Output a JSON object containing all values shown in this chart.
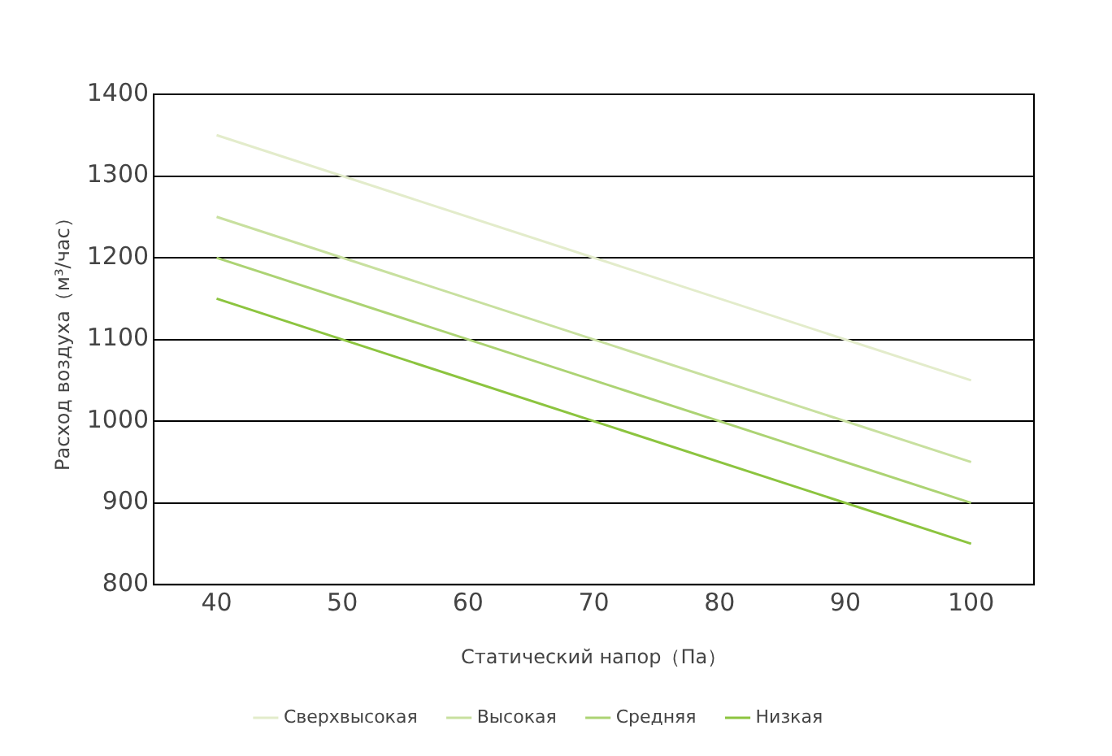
{
  "chart_data": {
    "type": "line",
    "xlabel": "Статический напор（Па）",
    "ylabel": "Расход воздуха（м³/час）",
    "x": [
      40,
      100
    ],
    "series": [
      {
        "name": "Сверхвысокая",
        "color": "#e3eccb",
        "values": [
          1350,
          1050
        ]
      },
      {
        "name": "Высокая",
        "color": "#c8e09f",
        "values": [
          1250,
          950
        ]
      },
      {
        "name": "Средняя",
        "color": "#acd373",
        "values": [
          1200,
          900
        ]
      },
      {
        "name": "Низкая",
        "color": "#8cc43f",
        "values": [
          1150,
          850
        ]
      }
    ],
    "xlim": [
      35,
      105
    ],
    "xticks": [
      40,
      50,
      60,
      70,
      80,
      90,
      100
    ],
    "ylim": [
      800,
      1400
    ],
    "yticks": [
      800,
      900,
      1000,
      1100,
      1200,
      1300,
      1400
    ],
    "grid": "y",
    "legend": "bottom",
    "marker": "none",
    "line_style": "solid"
  }
}
